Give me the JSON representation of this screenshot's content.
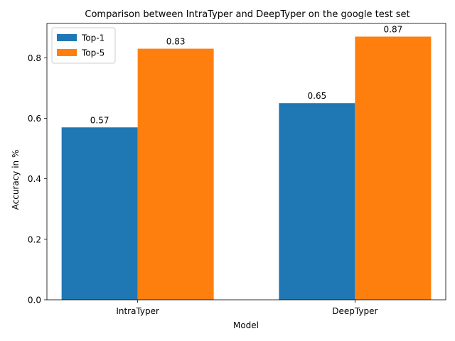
{
  "chart_data": {
    "type": "bar",
    "title": "Comparison between IntraTyper and DeepTyper on the google test set",
    "xlabel": "Model",
    "ylabel": "Accuracy in %",
    "categories": [
      "IntraTyper",
      "DeepTyper"
    ],
    "series": [
      {
        "name": "Top-1",
        "values": [
          0.57,
          0.65
        ],
        "color": "#1f77b4"
      },
      {
        "name": "Top-5",
        "values": [
          0.83,
          0.87
        ],
        "color": "#ff7f0e"
      }
    ],
    "data_labels": [
      [
        "0.57",
        "0.65"
      ],
      [
        "0.83",
        "0.87"
      ]
    ],
    "ylim": [
      0,
      0.9135
    ],
    "yticks": [
      0.0,
      0.2,
      0.4,
      0.6,
      0.8
    ],
    "ytick_labels": [
      "0.0",
      "0.2",
      "0.4",
      "0.6",
      "0.8"
    ],
    "grid": false,
    "legend_position": "top-left"
  }
}
